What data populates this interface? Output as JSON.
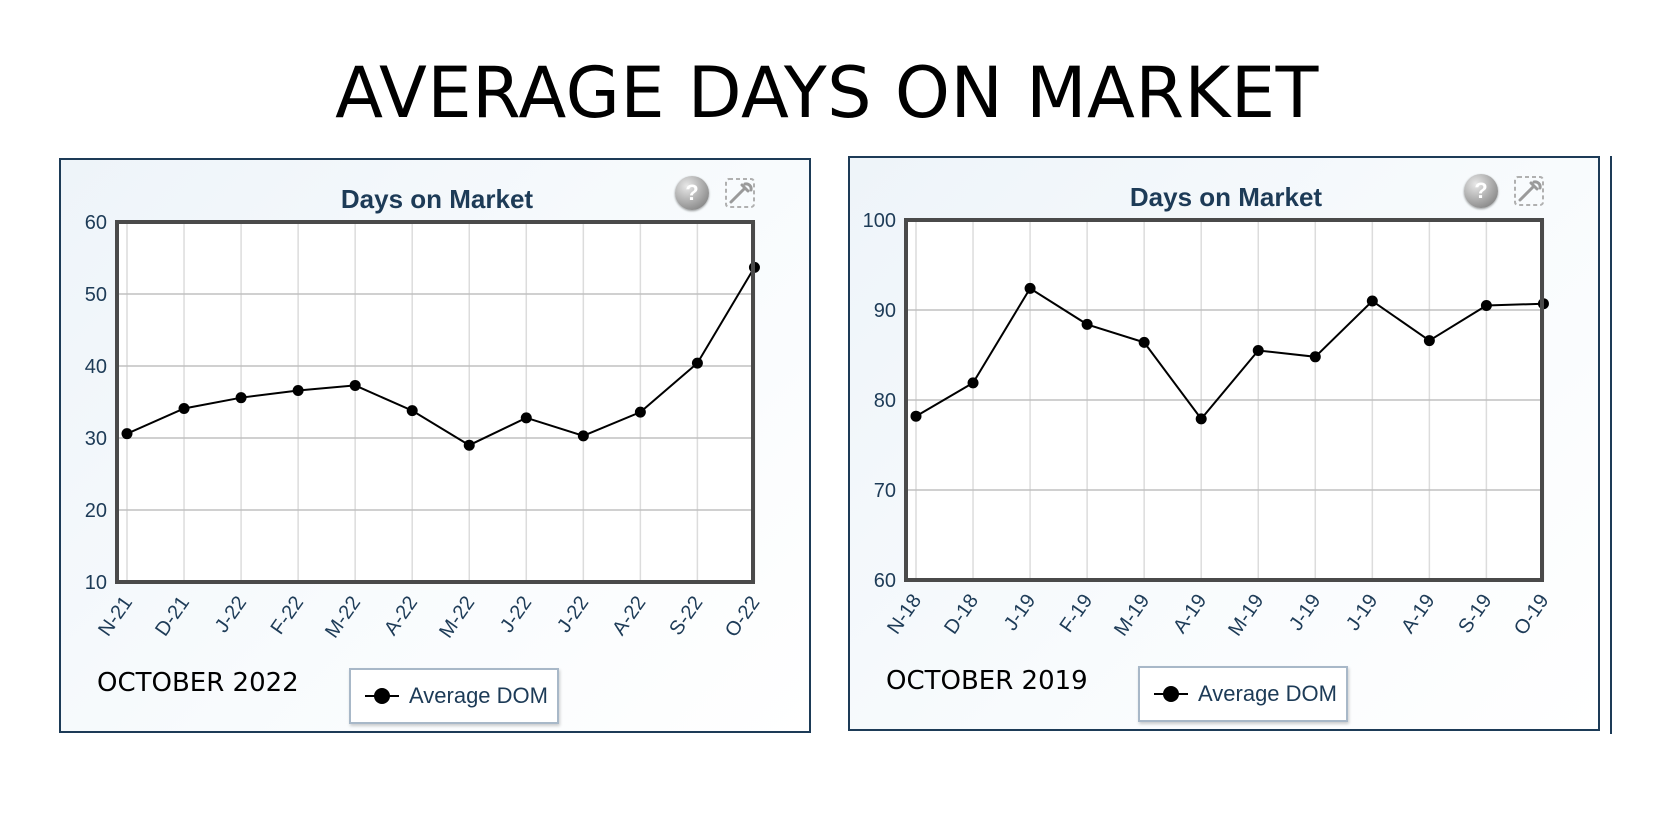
{
  "page": {
    "title": "AVERAGE DAYS ON MARKET"
  },
  "chart_data": [
    {
      "type": "line",
      "title": "Days on Market",
      "caption": "OCTOBER 2022",
      "categories": [
        "N-21",
        "D-21",
        "J-22",
        "F-22",
        "M-22",
        "A-22",
        "M-22",
        "J-22",
        "J-22",
        "A-22",
        "S-22",
        "O-22"
      ],
      "series": [
        {
          "name": "Average DOM",
          "values": [
            30.6,
            34.1,
            35.6,
            36.6,
            37.3,
            33.8,
            29.0,
            32.8,
            30.3,
            33.6,
            40.4,
            53.7
          ]
        }
      ],
      "ylim": [
        10,
        60
      ],
      "yticks": [
        10,
        20,
        30,
        40,
        50,
        60
      ],
      "grid": true,
      "legend": "bottom-center"
    },
    {
      "type": "line",
      "title": "Days on Market",
      "caption": "OCTOBER 2019",
      "categories": [
        "N-18",
        "D-18",
        "J-19",
        "F-19",
        "M-19",
        "A-19",
        "M-19",
        "J-19",
        "J-19",
        "A-19",
        "S-19",
        "O-19"
      ],
      "series": [
        {
          "name": "Average DOM",
          "values": [
            78.2,
            81.9,
            92.4,
            88.4,
            86.4,
            77.9,
            85.5,
            84.8,
            91.0,
            86.6,
            90.5,
            90.7
          ]
        }
      ],
      "ylim": [
        60,
        100
      ],
      "yticks": [
        60,
        70,
        80,
        90,
        100
      ],
      "grid": true,
      "legend": "bottom-center"
    }
  ],
  "icons": {
    "help": "help-icon",
    "settings": "settings-tool-icon"
  },
  "colors": {
    "frame": "#1d3b57",
    "line": "#000000",
    "plot_border": "#4a4a4a",
    "grid": "#c8c8c8"
  }
}
